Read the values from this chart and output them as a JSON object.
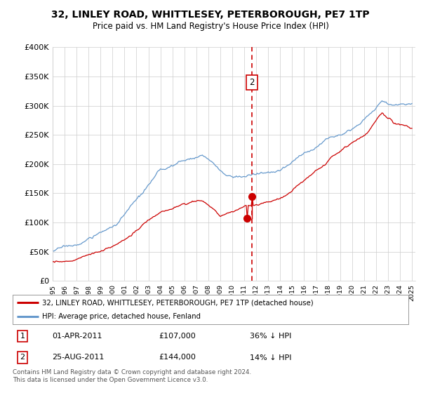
{
  "title": "32, LINLEY ROAD, WHITTLESEY, PETERBOROUGH, PE7 1TP",
  "subtitle": "Price paid vs. HM Land Registry's House Price Index (HPI)",
  "legend_line1": "32, LINLEY ROAD, WHITTLESEY, PETERBOROUGH, PE7 1TP (detached house)",
  "legend_line2": "HPI: Average price, detached house, Fenland",
  "annotation1_date": "01-APR-2011",
  "annotation1_price": "£107,000",
  "annotation1_hpi": "36% ↓ HPI",
  "annotation2_date": "25-AUG-2011",
  "annotation2_price": "£144,000",
  "annotation2_hpi": "14% ↓ HPI",
  "footnote": "Contains HM Land Registry data © Crown copyright and database right 2024.\nThis data is licensed under the Open Government Licence v3.0.",
  "ylim": [
    0,
    400000
  ],
  "yticks": [
    0,
    50000,
    100000,
    150000,
    200000,
    250000,
    300000,
    350000,
    400000
  ],
  "ytick_labels": [
    "£0",
    "£50K",
    "£100K",
    "£150K",
    "£200K",
    "£250K",
    "£300K",
    "£350K",
    "£400K"
  ],
  "red_line_color": "#cc0000",
  "blue_line_color": "#6699cc",
  "vline_color": "#cc0000",
  "marker_color": "#cc0000",
  "transaction1_x": 2011.25,
  "transaction1_y": 107000,
  "transaction2_x": 2011.65,
  "transaction2_y": 144000,
  "background_color": "#ffffff",
  "grid_color": "#cccccc",
  "xlim_left": 1995.0,
  "xlim_right": 2025.3
}
